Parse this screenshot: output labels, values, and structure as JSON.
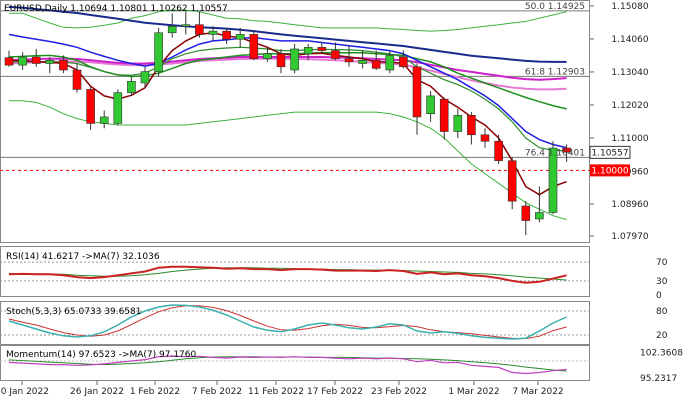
{
  "chart_data": {
    "type": "candlestick",
    "title": "EURUSD,Daily",
    "ohlc_readout": "1.10694 1.10801 1.10262 1.10557",
    "dates": [
      "20 Jan 2022",
      "26 Jan 2022",
      "1 Feb 2022",
      "7 Feb 2022",
      "11 Feb 2022",
      "17 Feb 2022",
      "23 Feb 2022",
      "1 Mar 2022",
      "7 Mar 2022"
    ],
    "main": {
      "ylim": [
        1.0785,
        1.152
      ],
      "y_ticks": [
        "1.15080",
        "1.14060",
        "1.13040",
        "1.12020",
        "1.11000",
        "1.09960",
        "1.08960",
        "1.07970"
      ],
      "current_price_label": "1.10557",
      "current_price": 1.10557,
      "level_1_1000_label": "1.10000",
      "level_1_1000": 1.1,
      "fib_levels": [
        {
          "label": "50.0 1.14925",
          "price": 1.14925
        },
        {
          "label": "61.8 1.12903",
          "price": 1.12903
        },
        {
          "label": "76.4 1.10401",
          "price": 1.10401
        }
      ],
      "candles": [
        [
          1.1348,
          1.137,
          1.132,
          1.1325
        ],
        [
          1.1325,
          1.1365,
          1.131,
          1.135
        ],
        [
          1.135,
          1.1375,
          1.132,
          1.133
        ],
        [
          1.133,
          1.135,
          1.13,
          1.134
        ],
        [
          1.134,
          1.1355,
          1.13,
          1.131
        ],
        [
          1.131,
          1.133,
          1.124,
          1.125
        ],
        [
          1.125,
          1.126,
          1.1125,
          1.1145
        ],
        [
          1.1145,
          1.1185,
          1.113,
          1.1165
        ],
        [
          1.1145,
          1.125,
          1.114,
          1.124
        ],
        [
          1.124,
          1.129,
          1.123,
          1.1275
        ],
        [
          1.127,
          1.132,
          1.1255,
          1.1305
        ],
        [
          1.1305,
          1.144,
          1.129,
          1.1425
        ],
        [
          1.1425,
          1.1485,
          1.141,
          1.1445
        ],
        [
          1.1445,
          1.149,
          1.142,
          1.145
        ],
        [
          1.145,
          1.149,
          1.141,
          1.142
        ],
        [
          1.142,
          1.1445,
          1.14,
          1.143
        ],
        [
          1.143,
          1.144,
          1.139,
          1.1405
        ],
        [
          1.1405,
          1.144,
          1.138,
          1.142
        ],
        [
          1.142,
          1.143,
          1.134,
          1.1345
        ],
        [
          1.1345,
          1.138,
          1.1335,
          1.136
        ],
        [
          1.136,
          1.1375,
          1.13,
          1.132
        ],
        [
          1.131,
          1.139,
          1.13,
          1.1375
        ],
        [
          1.136,
          1.139,
          1.134,
          1.138
        ],
        [
          1.138,
          1.1395,
          1.136,
          1.137
        ],
        [
          1.137,
          1.1395,
          1.134,
          1.1345
        ],
        [
          1.1345,
          1.1385,
          1.132,
          1.1335
        ],
        [
          1.133,
          1.137,
          1.1315,
          1.134
        ],
        [
          1.134,
          1.137,
          1.131,
          1.1315
        ],
        [
          1.131,
          1.137,
          1.13,
          1.1355
        ],
        [
          1.135,
          1.137,
          1.1315,
          1.132
        ],
        [
          1.132,
          1.133,
          1.111,
          1.1165
        ],
        [
          1.1175,
          1.1245,
          1.115,
          1.123
        ],
        [
          1.122,
          1.1225,
          1.1095,
          1.112
        ],
        [
          1.112,
          1.119,
          1.11,
          1.117
        ],
        [
          1.117,
          1.118,
          1.108,
          1.111
        ],
        [
          1.111,
          1.113,
          1.107,
          1.109
        ],
        [
          1.109,
          1.111,
          1.102,
          1.103
        ],
        [
          1.103,
          1.104,
          1.088,
          1.0905
        ],
        [
          1.089,
          1.0905,
          1.08,
          1.0845
        ],
        [
          1.085,
          1.095,
          1.084,
          1.087
        ],
        [
          1.087,
          1.109,
          1.0865,
          1.1069
        ],
        [
          1.1069,
          1.108,
          1.1026,
          1.1056
        ]
      ],
      "bollinger_upper": [
        1.1485,
        1.1485,
        1.147,
        1.1455,
        1.1442,
        1.144,
        1.1442,
        1.1448,
        1.1455,
        1.147,
        1.1478,
        1.149,
        1.1495,
        1.1495,
        1.149,
        1.148,
        1.147,
        1.1468,
        1.1462,
        1.146,
        1.1455,
        1.145,
        1.1445,
        1.144,
        1.144,
        1.144,
        1.144,
        1.144,
        1.1437,
        1.1435,
        1.1432,
        1.143,
        1.1432,
        1.1435,
        1.144,
        1.1445,
        1.145,
        1.1455,
        1.146,
        1.147,
        1.148,
        1.149
      ],
      "bollinger_lower": [
        1.1215,
        1.1215,
        1.121,
        1.1195,
        1.1175,
        1.116,
        1.115,
        1.1145,
        1.114,
        1.114,
        1.114,
        1.114,
        1.114,
        1.114,
        1.1145,
        1.115,
        1.1155,
        1.116,
        1.1165,
        1.117,
        1.1175,
        1.118,
        1.118,
        1.118,
        1.118,
        1.118,
        1.118,
        1.118,
        1.1175,
        1.1165,
        1.115,
        1.113,
        1.11,
        1.106,
        1.102,
        1.099,
        1.096,
        1.093,
        1.09,
        1.088,
        1.086,
        1.0848
      ],
      "ema_fast": [
        1.134,
        1.1338,
        1.1336,
        1.1334,
        1.133,
        1.131,
        1.126,
        1.123,
        1.122,
        1.1232,
        1.1255,
        1.132,
        1.137,
        1.14,
        1.142,
        1.1425,
        1.1415,
        1.141,
        1.1395,
        1.138,
        1.136,
        1.1355,
        1.136,
        1.1362,
        1.1355,
        1.135,
        1.1345,
        1.1335,
        1.1335,
        1.133,
        1.128,
        1.126,
        1.122,
        1.1195,
        1.1165,
        1.114,
        1.11,
        1.103,
        1.095,
        1.0925,
        1.095,
        1.0965
      ],
      "ema_mid": [
        1.1335,
        1.1335,
        1.1336,
        1.1336,
        1.1334,
        1.133,
        1.1318,
        1.1305,
        1.1295,
        1.1294,
        1.13,
        1.132,
        1.1345,
        1.136,
        1.137,
        1.1375,
        1.1378,
        1.138,
        1.1378,
        1.1375,
        1.137,
        1.137,
        1.1372,
        1.1374,
        1.1373,
        1.1372,
        1.137,
        1.1365,
        1.136,
        1.135,
        1.132,
        1.13,
        1.128,
        1.1265,
        1.1245,
        1.122,
        1.119,
        1.115,
        1.11,
        1.107,
        1.1062,
        1.106
      ],
      "ema_blue": [
        1.142,
        1.1412,
        1.1405,
        1.1398,
        1.139,
        1.138,
        1.1365,
        1.1352,
        1.134,
        1.133,
        1.1322,
        1.133,
        1.135,
        1.1372,
        1.139,
        1.14,
        1.1403,
        1.1408,
        1.141,
        1.1405,
        1.14,
        1.14,
        1.14,
        1.1395,
        1.139,
        1.1385,
        1.138,
        1.1375,
        1.137,
        1.136,
        1.134,
        1.132,
        1.13,
        1.128,
        1.1255,
        1.123,
        1.12,
        1.116,
        1.112,
        1.1095,
        1.108,
        1.107
      ],
      "ema_green": [
        1.135,
        1.1352,
        1.1354,
        1.1355,
        1.135,
        1.134,
        1.132,
        1.1305,
        1.1295,
        1.129,
        1.1292,
        1.13,
        1.1315,
        1.133,
        1.134,
        1.1345,
        1.135,
        1.1355,
        1.1358,
        1.136,
        1.136,
        1.136,
        1.1362,
        1.1363,
        1.1363,
        1.1363,
        1.1363,
        1.136,
        1.1358,
        1.1355,
        1.1345,
        1.1335,
        1.132,
        1.13,
        1.1285,
        1.127,
        1.1255,
        1.124,
        1.1225,
        1.1212,
        1.12,
        1.119
      ],
      "ema_navy": [
        1.1505,
        1.1502,
        1.1498,
        1.1494,
        1.149,
        1.1486,
        1.148,
        1.1474,
        1.1468,
        1.1462,
        1.1456,
        1.1452,
        1.1448,
        1.1445,
        1.1442,
        1.144,
        1.1438,
        1.1434,
        1.143,
        1.1425,
        1.142,
        1.1416,
        1.1412,
        1.1408,
        1.1404,
        1.14,
        1.1396,
        1.1392,
        1.1388,
        1.1384,
        1.1378,
        1.1372,
        1.1366,
        1.136,
        1.1354,
        1.135,
        1.1346,
        1.1342,
        1.1338,
        1.1336,
        1.1335,
        1.1335
      ],
      "ema_magenta": [
        1.134,
        1.1342,
        1.1344,
        1.1345,
        1.1345,
        1.1344,
        1.134,
        1.1336,
        1.1332,
        1.133,
        1.133,
        1.1332,
        1.1336,
        1.134,
        1.1344,
        1.1346,
        1.1348,
        1.135,
        1.135,
        1.135,
        1.135,
        1.135,
        1.135,
        1.135,
        1.1349,
        1.1348,
        1.1346,
        1.1344,
        1.1342,
        1.134,
        1.1334,
        1.1326,
        1.1318,
        1.131,
        1.1304,
        1.1298,
        1.1292,
        1.1286,
        1.1282,
        1.128,
        1.1282,
        1.1285
      ],
      "ema_pink": [
        1.133,
        1.1332,
        1.1334,
        1.1335,
        1.1336,
        1.1336,
        1.1334,
        1.133,
        1.1327,
        1.1325,
        1.1325,
        1.1327,
        1.133,
        1.1334,
        1.1338,
        1.134,
        1.1342,
        1.1344,
        1.1345,
        1.1345,
        1.1345,
        1.1344,
        1.1343,
        1.1342,
        1.134,
        1.1338,
        1.1335,
        1.1332,
        1.133,
        1.1326,
        1.1318,
        1.1308,
        1.1298,
        1.1288,
        1.1278,
        1.127,
        1.1262,
        1.1256,
        1.1252,
        1.125,
        1.125,
        1.1252
      ]
    },
    "rsi": {
      "label": "RSI(14) 41.6217 ->MA(7) 32.1036",
      "ylim": [
        0,
        100
      ],
      "ticks": [
        "70",
        "30",
        "0"
      ],
      "levels": [
        70,
        30
      ],
      "rsi": [
        44,
        45,
        44,
        44,
        42,
        38,
        36,
        38,
        42,
        46,
        50,
        58,
        60,
        60,
        59,
        58,
        56,
        57,
        55,
        55,
        53,
        55,
        55,
        54,
        52,
        52,
        52,
        51,
        53,
        51,
        45,
        48,
        44,
        46,
        42,
        40,
        36,
        30,
        26,
        28,
        35,
        42
      ],
      "ma": [
        46,
        45,
        45,
        45,
        44,
        42,
        41,
        40,
        40,
        41,
        43,
        46,
        50,
        53,
        55,
        57,
        58,
        58,
        58,
        57,
        57,
        56,
        55,
        55,
        54,
        54,
        53,
        53,
        53,
        52,
        51,
        50,
        49,
        48,
        46,
        45,
        43,
        41,
        38,
        36,
        34,
        32
      ]
    },
    "stoch": {
      "label": "Stoch(5,3,3) 65.0733 39.6581",
      "ylim": [
        0,
        100
      ],
      "ticks": [
        "80",
        "20"
      ],
      "levels": [
        80,
        20
      ],
      "k": [
        55,
        45,
        35,
        25,
        18,
        15,
        18,
        28,
        45,
        65,
        80,
        90,
        95,
        94,
        90,
        82,
        70,
        55,
        40,
        32,
        28,
        35,
        45,
        50,
        45,
        38,
        35,
        40,
        48,
        45,
        30,
        25,
        28,
        24,
        18,
        14,
        12,
        10,
        12,
        30,
        50,
        65
      ],
      "d": [
        60,
        52,
        45,
        35,
        26,
        20,
        17,
        20,
        30,
        46,
        63,
        78,
        88,
        93,
        93,
        89,
        81,
        69,
        55,
        42,
        33,
        32,
        36,
        43,
        47,
        44,
        39,
        38,
        41,
        44,
        41,
        33,
        28,
        26,
        23,
        19,
        15,
        12,
        11,
        17,
        31,
        40
      ]
    },
    "momentum": {
      "label": "Momentum(14) 97.6523 ->MA(7) 97.1760",
      "ylim": [
        94.7,
        103.9
      ],
      "ticks": [
        "102.3608",
        "95.2317"
      ],
      "mom": [
        99.6,
        99.4,
        99.2,
        99.0,
        99.0,
        98.8,
        98.9,
        99.2,
        99.6,
        100.0,
        100.4,
        101.2,
        101.4,
        101.2,
        101.3,
        101.0,
        100.8,
        101.1,
        101.0,
        101.1,
        101.0,
        101.2,
        101.0,
        101.0,
        100.8,
        100.6,
        100.8,
        100.6,
        100.8,
        100.6,
        99.8,
        100.2,
        99.5,
        99.6,
        98.8,
        98.5,
        98.2,
        96.8,
        96.5,
        96.8,
        97.3,
        97.65
      ],
      "ma": [
        100.3,
        100.1,
        99.9,
        99.7,
        99.5,
        99.3,
        99.1,
        99.0,
        99.1,
        99.3,
        99.5,
        99.8,
        100.2,
        100.6,
        100.9,
        101.1,
        101.2,
        101.2,
        101.2,
        101.1,
        101.1,
        101.1,
        101.1,
        101.0,
        101.0,
        101.0,
        100.9,
        100.8,
        100.8,
        100.7,
        100.6,
        100.5,
        100.3,
        100.1,
        99.8,
        99.5,
        99.2,
        98.8,
        98.3,
        97.9,
        97.5,
        97.18
      ]
    },
    "colors": {
      "bull": "#32c832",
      "bear": "#ff0000",
      "ema_fast": "#8b0000",
      "ema_mid": "#2e8b2e",
      "ema_blue": "#1e1ee6",
      "ema_green": "#1f8f1f",
      "ema_navy": "#1a2a8a",
      "ema_magenta": "#cc22cc",
      "ema_pink": "#e87ad6",
      "bollinger": "#3bb33b",
      "rsi": "#cc2222",
      "rsi_ma": "#2a8a2a",
      "stoch_k": "#3ab0b0",
      "stoch_d": "#cc3333",
      "mom": "#c040c0",
      "mom_ma": "#2e8b2e"
    }
  }
}
